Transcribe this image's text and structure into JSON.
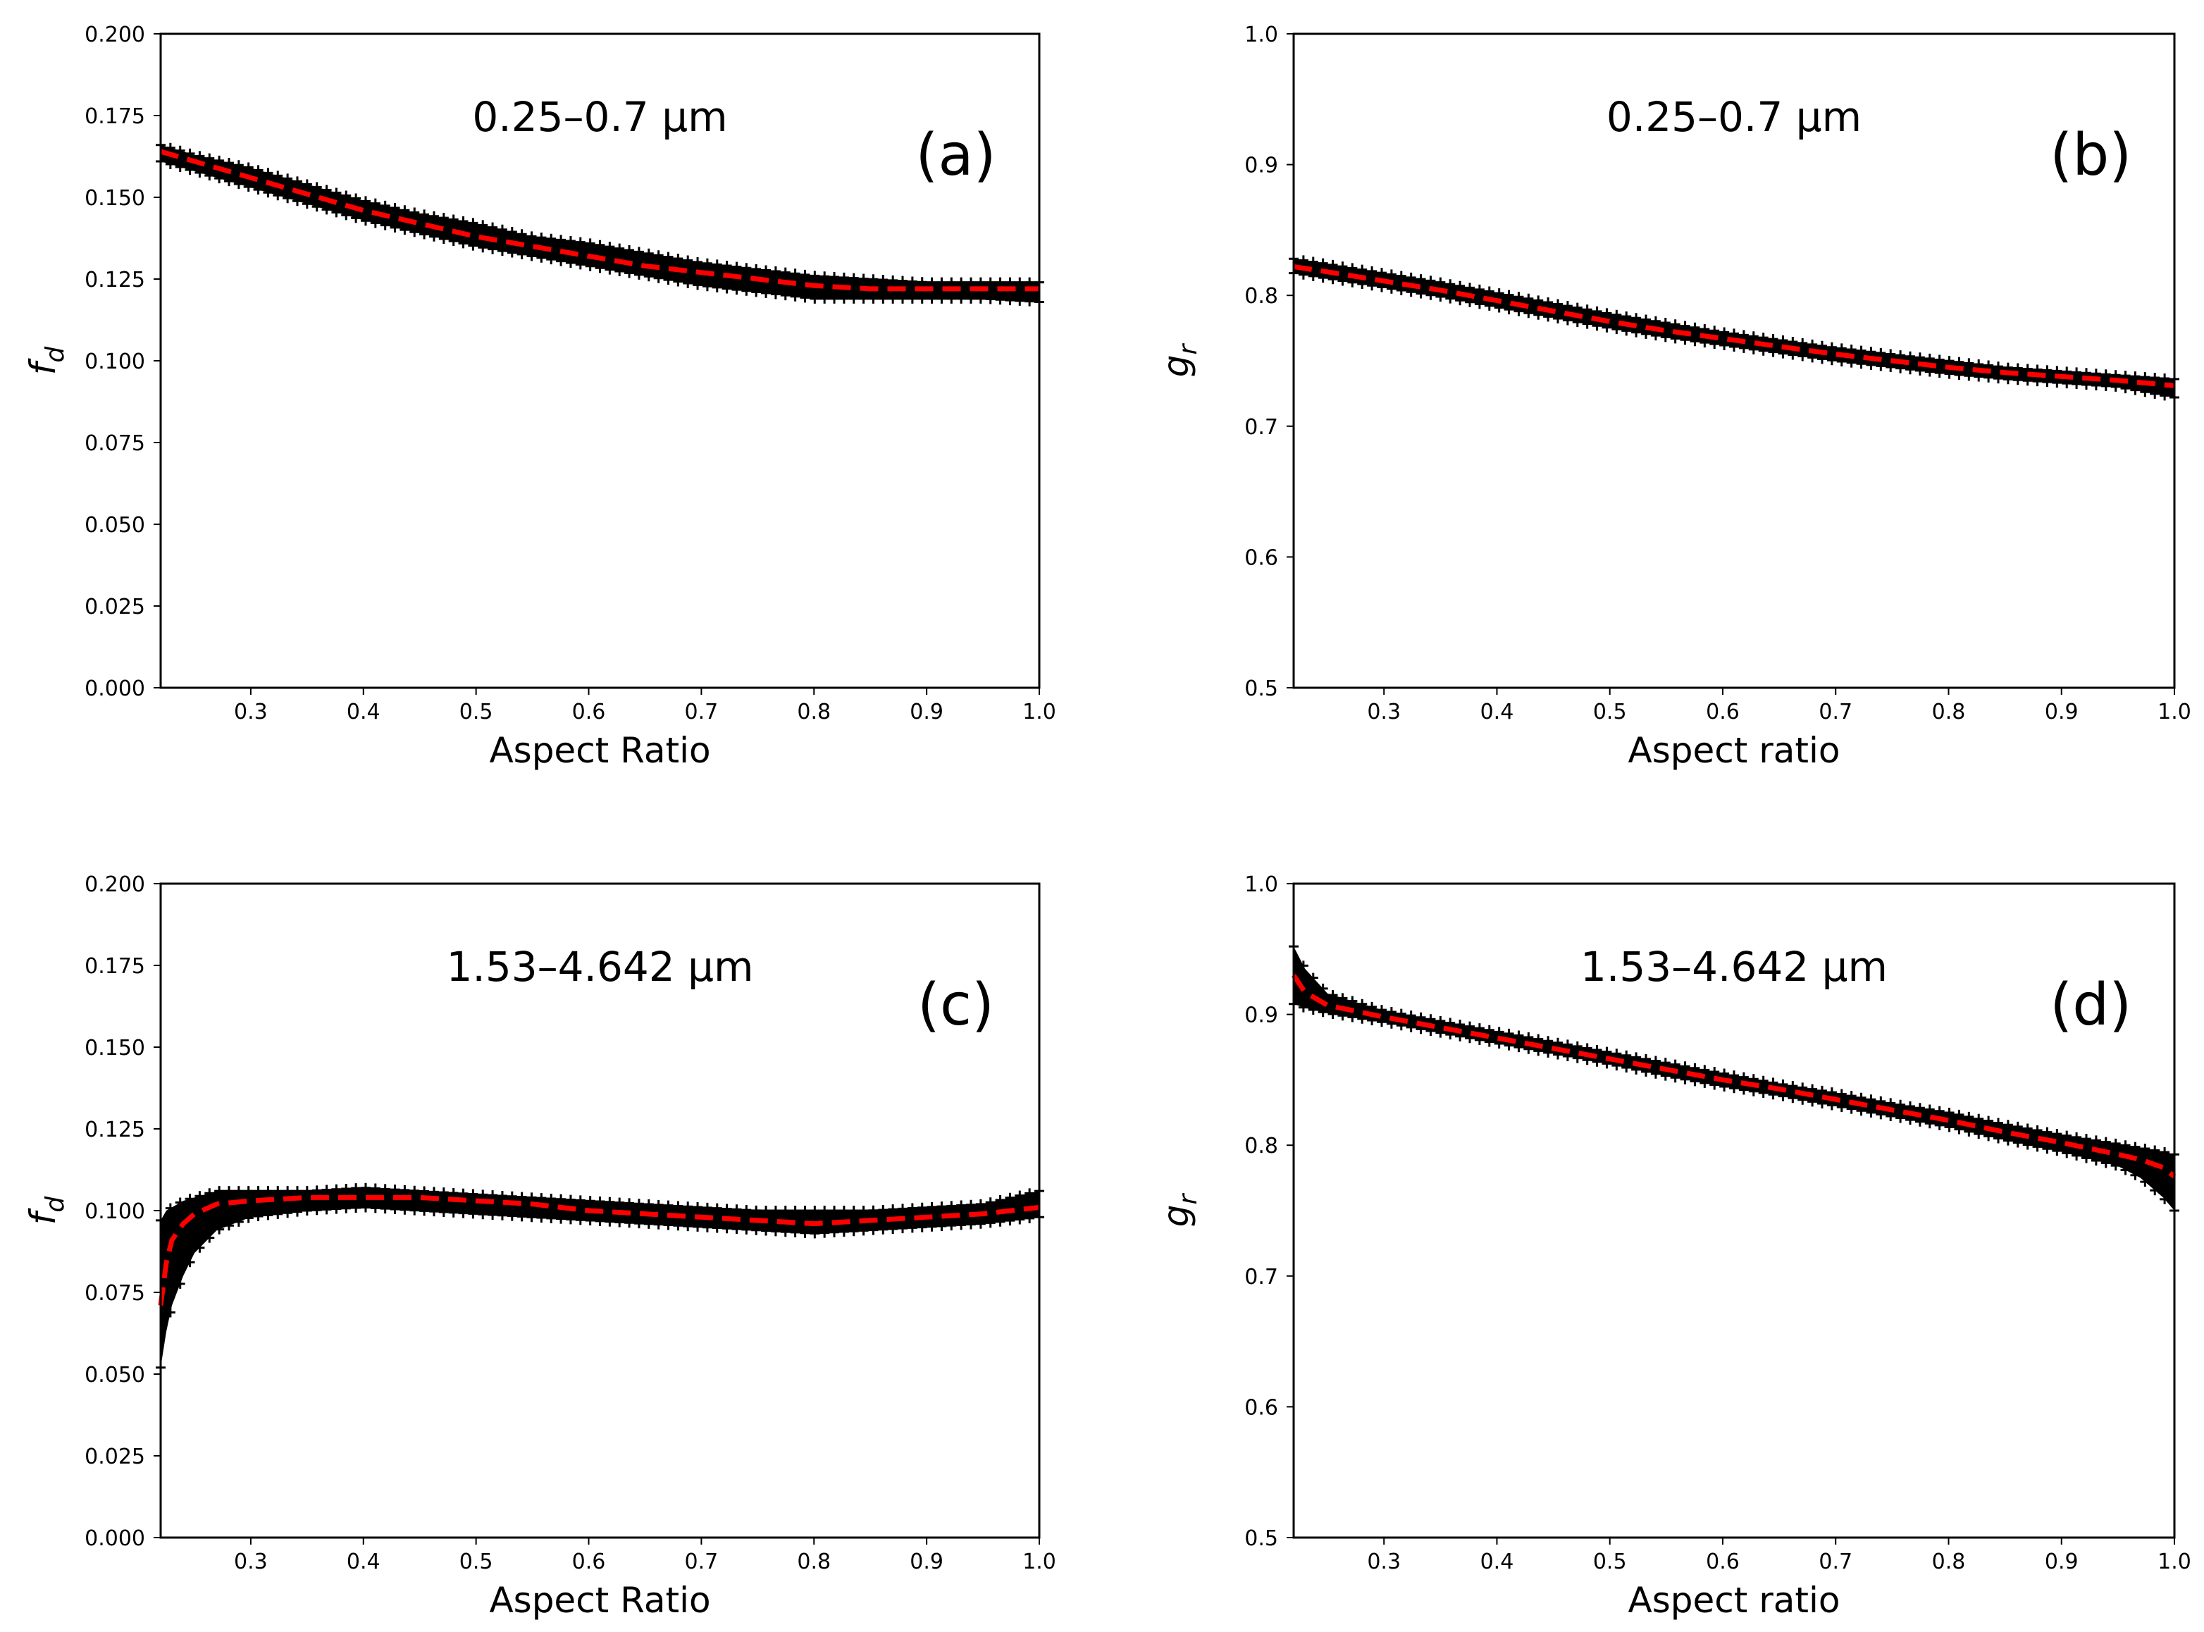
{
  "chart_data": [
    {
      "type": "line",
      "panel": "(a)",
      "title": "0.25–0.7 μm",
      "xlabel": "Aspect Ratio",
      "ylabel": "f",
      "ylabel_sub": "d",
      "xlim": [
        0.22,
        1.0
      ],
      "ylim": [
        0.0,
        0.2
      ],
      "xticks": [
        0.3,
        0.4,
        0.5,
        0.6,
        0.7,
        0.8,
        0.9,
        1.0
      ],
      "xtick_labels": [
        "0.3",
        "0.4",
        "0.5",
        "0.6",
        "0.7",
        "0.8",
        "0.9",
        "1.0"
      ],
      "yticks": [
        0.0,
        0.025,
        0.05,
        0.075,
        0.1,
        0.125,
        0.15,
        0.175,
        0.2
      ],
      "ytick_labels": [
        "0.000",
        "0.025",
        "0.050",
        "0.075",
        "0.100",
        "0.125",
        "0.150",
        "0.175",
        "0.200"
      ],
      "series": [
        {
          "name": "samples",
          "style": "markers",
          "color": "#000000",
          "x": [
            0.22,
            0.25,
            0.3,
            0.35,
            0.4,
            0.45,
            0.5,
            0.55,
            0.6,
            0.65,
            0.7,
            0.75,
            0.8,
            0.85,
            0.9,
            0.95,
            1.0
          ],
          "lower": [
            0.161,
            0.158,
            0.153,
            0.148,
            0.143,
            0.139,
            0.135,
            0.132,
            0.129,
            0.126,
            0.123,
            0.121,
            0.119,
            0.119,
            0.119,
            0.119,
            0.118
          ],
          "upper": [
            0.166,
            0.163,
            0.159,
            0.154,
            0.149,
            0.145,
            0.142,
            0.138,
            0.136,
            0.133,
            0.13,
            0.128,
            0.126,
            0.125,
            0.124,
            0.124,
            0.124
          ]
        },
        {
          "name": "fit",
          "style": "dashed",
          "color": "#ff0000",
          "x": [
            0.22,
            0.25,
            0.3,
            0.35,
            0.4,
            0.45,
            0.5,
            0.55,
            0.6,
            0.65,
            0.7,
            0.75,
            0.8,
            0.85,
            0.9,
            0.95,
            1.0
          ],
          "y": [
            0.164,
            0.161,
            0.156,
            0.151,
            0.146,
            0.142,
            0.138,
            0.135,
            0.132,
            0.129,
            0.127,
            0.125,
            0.123,
            0.122,
            0.122,
            0.122,
            0.122
          ]
        }
      ]
    },
    {
      "type": "line",
      "panel": "(b)",
      "title": "0.25–0.7 μm",
      "xlabel": "Aspect ratio",
      "ylabel": "g",
      "ylabel_sub": "r",
      "xlim": [
        0.22,
        1.0
      ],
      "ylim": [
        0.5,
        1.0
      ],
      "xticks": [
        0.3,
        0.4,
        0.5,
        0.6,
        0.7,
        0.8,
        0.9,
        1.0
      ],
      "xtick_labels": [
        "0.3",
        "0.4",
        "0.5",
        "0.6",
        "0.7",
        "0.8",
        "0.9",
        "1.0"
      ],
      "yticks": [
        0.5,
        0.6,
        0.7,
        0.8,
        0.9,
        1.0
      ],
      "ytick_labels": [
        "0.5",
        "0.6",
        "0.7",
        "0.8",
        "0.9",
        "1.0"
      ],
      "series": [
        {
          "name": "samples",
          "style": "markers",
          "color": "#000000",
          "x": [
            0.22,
            0.25,
            0.3,
            0.35,
            0.4,
            0.45,
            0.5,
            0.55,
            0.6,
            0.65,
            0.7,
            0.75,
            0.8,
            0.85,
            0.9,
            0.95,
            1.0
          ],
          "lower": [
            0.817,
            0.813,
            0.806,
            0.799,
            0.791,
            0.783,
            0.775,
            0.768,
            0.762,
            0.756,
            0.75,
            0.745,
            0.74,
            0.736,
            0.733,
            0.73,
            0.722
          ],
          "upper": [
            0.828,
            0.824,
            0.817,
            0.81,
            0.802,
            0.794,
            0.786,
            0.779,
            0.772,
            0.766,
            0.76,
            0.755,
            0.75,
            0.745,
            0.742,
            0.739,
            0.736
          ]
        },
        {
          "name": "fit",
          "style": "dashed",
          "color": "#ff0000",
          "x": [
            0.22,
            0.25,
            0.3,
            0.35,
            0.4,
            0.45,
            0.5,
            0.55,
            0.6,
            0.65,
            0.7,
            0.75,
            0.8,
            0.85,
            0.9,
            0.95,
            1.0
          ],
          "y": [
            0.822,
            0.818,
            0.811,
            0.804,
            0.796,
            0.788,
            0.78,
            0.773,
            0.767,
            0.761,
            0.755,
            0.75,
            0.745,
            0.741,
            0.738,
            0.735,
            0.731
          ]
        }
      ]
    },
    {
      "type": "line",
      "panel": "(c)",
      "title": "1.53–4.642 μm",
      "xlabel": "Aspect Ratio",
      "ylabel": "f",
      "ylabel_sub": "d",
      "xlim": [
        0.22,
        1.0
      ],
      "ylim": [
        0.0,
        0.2
      ],
      "xticks": [
        0.3,
        0.4,
        0.5,
        0.6,
        0.7,
        0.8,
        0.9,
        1.0
      ],
      "xtick_labels": [
        "0.3",
        "0.4",
        "0.5",
        "0.6",
        "0.7",
        "0.8",
        "0.9",
        "1.0"
      ],
      "yticks": [
        0.0,
        0.025,
        0.05,
        0.075,
        0.1,
        0.125,
        0.15,
        0.175,
        0.2
      ],
      "ytick_labels": [
        "0.000",
        "0.025",
        "0.050",
        "0.075",
        "0.100",
        "0.125",
        "0.150",
        "0.175",
        "0.200"
      ],
      "series": [
        {
          "name": "samples",
          "style": "markers",
          "color": "#000000",
          "x": [
            0.22,
            0.225,
            0.23,
            0.24,
            0.25,
            0.27,
            0.3,
            0.35,
            0.4,
            0.45,
            0.5,
            0.55,
            0.6,
            0.65,
            0.7,
            0.75,
            0.8,
            0.85,
            0.9,
            0.95,
            1.0
          ],
          "lower": [
            0.052,
            0.063,
            0.071,
            0.08,
            0.087,
            0.094,
            0.098,
            0.1,
            0.101,
            0.1,
            0.099,
            0.098,
            0.097,
            0.096,
            0.095,
            0.094,
            0.093,
            0.094,
            0.095,
            0.096,
            0.098
          ],
          "upper": [
            0.097,
            0.1,
            0.101,
            0.103,
            0.104,
            0.106,
            0.106,
            0.106,
            0.107,
            0.106,
            0.105,
            0.104,
            0.103,
            0.102,
            0.101,
            0.1,
            0.1,
            0.1,
            0.101,
            0.102,
            0.106
          ]
        },
        {
          "name": "fit",
          "style": "dashed",
          "color": "#ff0000",
          "x": [
            0.22,
            0.225,
            0.23,
            0.24,
            0.25,
            0.27,
            0.3,
            0.35,
            0.4,
            0.45,
            0.5,
            0.55,
            0.6,
            0.65,
            0.7,
            0.75,
            0.8,
            0.85,
            0.9,
            0.95,
            1.0
          ],
          "y": [
            0.071,
            0.084,
            0.091,
            0.096,
            0.099,
            0.102,
            0.103,
            0.104,
            0.104,
            0.104,
            0.103,
            0.102,
            0.1,
            0.099,
            0.098,
            0.097,
            0.096,
            0.097,
            0.098,
            0.099,
            0.101
          ]
        }
      ]
    },
    {
      "type": "line",
      "panel": "(d)",
      "title": "1.53–4.642 μm",
      "xlabel": "Aspect ratio",
      "ylabel": "g",
      "ylabel_sub": "r",
      "xlim": [
        0.22,
        1.0
      ],
      "ylim": [
        0.5,
        1.0
      ],
      "xticks": [
        0.3,
        0.4,
        0.5,
        0.6,
        0.7,
        0.8,
        0.9,
        1.0
      ],
      "xtick_labels": [
        "0.3",
        "0.4",
        "0.5",
        "0.6",
        "0.7",
        "0.8",
        "0.9",
        "1.0"
      ],
      "yticks": [
        0.5,
        0.6,
        0.7,
        0.8,
        0.9,
        1.0
      ],
      "ytick_labels": [
        "0.5",
        "0.6",
        "0.7",
        "0.8",
        "0.9",
        "1.0"
      ],
      "series": [
        {
          "name": "samples",
          "style": "markers",
          "color": "#000000",
          "x": [
            0.22,
            0.23,
            0.25,
            0.3,
            0.35,
            0.4,
            0.45,
            0.5,
            0.55,
            0.6,
            0.65,
            0.7,
            0.75,
            0.8,
            0.85,
            0.9,
            0.95,
            0.97,
            0.99,
            1.0
          ],
          "lower": [
            0.908,
            0.905,
            0.901,
            0.894,
            0.886,
            0.878,
            0.87,
            0.862,
            0.853,
            0.845,
            0.838,
            0.83,
            0.822,
            0.814,
            0.804,
            0.795,
            0.784,
            0.775,
            0.76,
            0.75
          ],
          "upper": [
            0.952,
            0.935,
            0.916,
            0.903,
            0.895,
            0.887,
            0.879,
            0.871,
            0.863,
            0.855,
            0.847,
            0.84,
            0.832,
            0.825,
            0.816,
            0.808,
            0.801,
            0.798,
            0.795,
            0.793
          ]
        },
        {
          "name": "fit",
          "style": "dashed",
          "color": "#ff0000",
          "x": [
            0.22,
            0.23,
            0.25,
            0.3,
            0.35,
            0.4,
            0.45,
            0.5,
            0.55,
            0.6,
            0.65,
            0.7,
            0.75,
            0.8,
            0.85,
            0.9,
            0.95,
            0.97,
            0.99,
            1.0
          ],
          "y": [
            0.93,
            0.917,
            0.907,
            0.898,
            0.89,
            0.882,
            0.874,
            0.866,
            0.858,
            0.85,
            0.843,
            0.835,
            0.827,
            0.819,
            0.81,
            0.802,
            0.793,
            0.789,
            0.783,
            0.776
          ]
        }
      ]
    }
  ]
}
